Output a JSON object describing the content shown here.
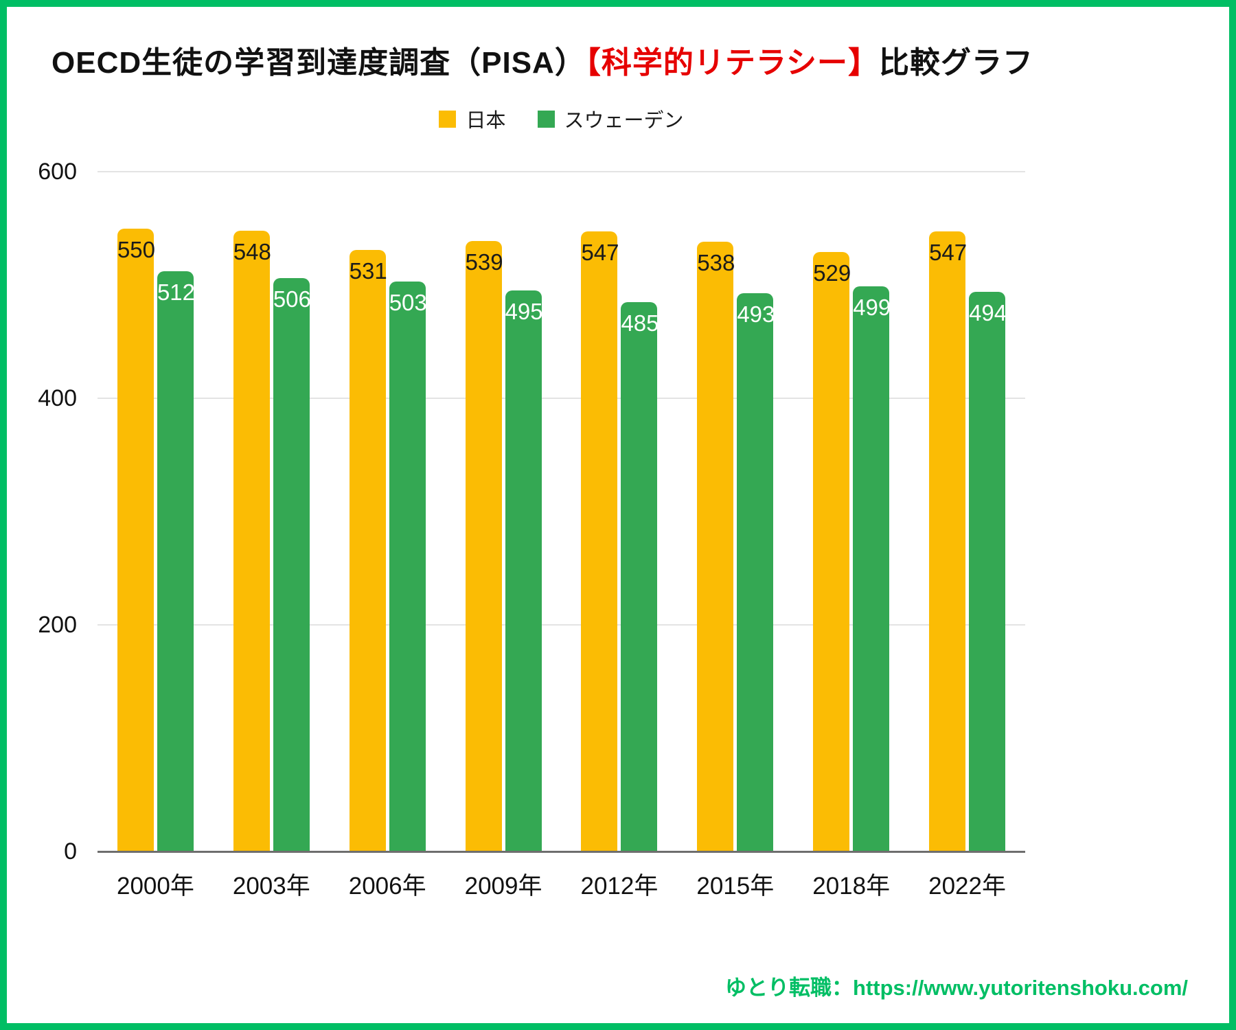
{
  "title": {
    "part1": "OECD生徒の学習到達度調査（PISA）",
    "part2_red": "【科学的リテラシー】",
    "part3": "比較グラフ"
  },
  "legend": {
    "japan": "日本",
    "sweden": "スウェーデン"
  },
  "footer": {
    "credit": "ゆとり転職：https://www.yutoritenshoku.com/"
  },
  "colors": {
    "japan_bar": "#FBBC04",
    "sweden_bar": "#34A853",
    "title_accent_red": "#E60000",
    "brand_green": "#00BE64",
    "gridline": "#e3e3e3",
    "axis_line": "#6e6e6e"
  },
  "chart_data": {
    "type": "bar",
    "title": "OECD生徒の学習到達度調査（PISA）【科学的リテラシー】比較グラフ",
    "categories": [
      "2000年",
      "2003年",
      "2006年",
      "2009年",
      "2012年",
      "2015年",
      "2018年",
      "2022年"
    ],
    "series": [
      {
        "name": "日本",
        "color": "#FBBC04",
        "label_color": "dark",
        "values": [
          550,
          548,
          531,
          539,
          547,
          538,
          529,
          547
        ]
      },
      {
        "name": "スウェーデン",
        "color": "#34A853",
        "label_color": "light",
        "values": [
          512,
          506,
          503,
          495,
          485,
          493,
          499,
          494
        ]
      }
    ],
    "xlabel": "",
    "ylabel": "",
    "ylim": [
      0,
      600
    ],
    "yticks": [
      0,
      200,
      400,
      600
    ],
    "grid": true,
    "legend_position": "top-center",
    "value_labels": "inside-top"
  }
}
